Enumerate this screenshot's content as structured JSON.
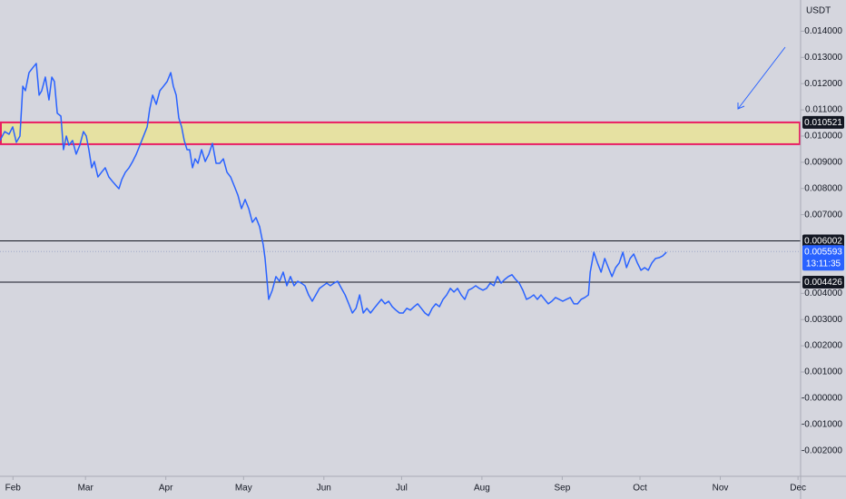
{
  "chart_data": {
    "type": "line",
    "axis_unit": "USDT",
    "color": "#2962ff",
    "x": [
      -5.0,
      -3.2,
      -1.5,
      -0.1,
      1.3,
      2.7,
      3.8,
      4.8,
      6.2,
      7.6,
      9.0,
      10.1,
      11.1,
      12.5,
      13.9,
      15.0,
      16.0,
      17.1,
      18.5,
      19.5,
      20.6,
      21.6,
      23.0,
      24.4,
      25.8,
      27.2,
      28.3,
      29.3,
      30.4,
      31.4,
      32.8,
      34.2,
      35.6,
      37.0,
      38.4,
      39.9,
      40.9,
      42.0,
      43.4,
      44.8,
      46.2,
      47.6,
      49.0,
      50.4,
      51.8,
      52.8,
      53.9,
      55.3,
      56.7,
      58.1,
      59.5,
      60.9,
      61.9,
      63.0,
      64.0,
      65.1,
      66.1,
      67.2,
      68.2,
      69.3,
      70.3,
      71.4,
      72.8,
      74.2,
      75.6,
      77.0,
      78.4,
      79.8,
      81.2,
      82.6,
      84.0,
      85.4,
      86.8,
      88.2,
      89.6,
      91.0,
      92.4,
      93.8,
      95.2,
      96.6,
      97.3,
      98.7,
      100.1,
      101.5,
      102.9,
      104.3,
      105.7,
      107.1,
      108.5,
      109.9,
      111.3,
      112.7,
      114.1,
      115.5,
      116.9,
      118.3,
      119.7,
      121.1,
      122.5,
      123.9,
      125.3,
      126.8,
      128.2,
      129.6,
      131.0,
      132.4,
      133.8,
      135.2,
      136.6,
      138.0,
      139.4,
      140.8,
      142.2,
      143.6,
      145.0,
      146.4,
      147.8,
      149.2,
      150.6,
      152.0,
      153.4,
      154.8,
      156.2,
      157.6,
      159.0,
      160.4,
      161.8,
      163.2,
      164.6,
      166.0,
      167.4,
      168.8,
      170.2,
      171.6,
      173.0,
      174.4,
      175.8,
      177.2,
      178.6,
      180.0,
      181.4,
      182.8,
      184.2,
      185.6,
      187.0,
      188.4,
      189.8,
      191.2,
      192.6,
      194.0,
      195.4,
      196.8,
      198.2,
      199.6,
      201.0,
      202.4,
      203.8,
      205.2,
      206.6,
      208.0,
      209.4,
      210.8,
      212.2,
      213.6,
      215.1,
      216.5,
      217.9,
      219.3,
      220.7,
      222.1,
      222.8,
      224.2,
      225.6,
      227.0,
      228.4,
      229.8,
      231.2,
      232.6,
      234.0,
      235.4,
      236.8,
      238.2,
      239.6,
      241.0,
      242.4,
      243.8,
      245.2,
      246.6,
      248.0,
      249.4,
      250.8,
      252.2
    ],
    "values": [
      0.00983,
      0.01017,
      0.01007,
      0.01035,
      0.00976,
      0.01,
      0.0119,
      0.01173,
      0.01242,
      0.0126,
      0.01277,
      0.01156,
      0.01173,
      0.01225,
      0.01138,
      0.01225,
      0.01208,
      0.01087,
      0.01076,
      0.00948,
      0.01,
      0.00965,
      0.00983,
      0.00931,
      0.00965,
      0.01017,
      0.01,
      0.00948,
      0.00879,
      0.00903,
      0.00844,
      0.00862,
      0.00879,
      0.00844,
      0.00827,
      0.0081,
      0.00799,
      0.00834,
      0.00862,
      0.00879,
      0.00903,
      0.00931,
      0.00965,
      0.01,
      0.01035,
      0.01104,
      0.01156,
      0.01121,
      0.01173,
      0.0119,
      0.01208,
      0.01242,
      0.0119,
      0.01156,
      0.01069,
      0.01035,
      0.00983,
      0.00948,
      0.00948,
      0.00879,
      0.00913,
      0.00896,
      0.00948,
      0.00903,
      0.00931,
      0.00972,
      0.00896,
      0.00896,
      0.00913,
      0.00862,
      0.00844,
      0.0081,
      0.00775,
      0.00723,
      0.00758,
      0.00723,
      0.00671,
      0.00689,
      0.00654,
      0.00585,
      0.00533,
      0.00377,
      0.00412,
      0.00464,
      0.00446,
      0.00481,
      0.00429,
      0.00464,
      0.00429,
      0.00446,
      0.00439,
      0.00429,
      0.00394,
      0.0037,
      0.00394,
      0.00419,
      0.00429,
      0.00439,
      0.00429,
      0.00439,
      0.00446,
      0.00419,
      0.00394,
      0.0036,
      0.00325,
      0.00343,
      0.00394,
      0.00325,
      0.00343,
      0.00325,
      0.00343,
      0.0036,
      0.00377,
      0.0036,
      0.0037,
      0.00349,
      0.00336,
      0.00325,
      0.00325,
      0.00343,
      0.00336,
      0.00349,
      0.0036,
      0.00343,
      0.00325,
      0.00315,
      0.00343,
      0.0036,
      0.00349,
      0.00377,
      0.00394,
      0.00419,
      0.00405,
      0.00419,
      0.00394,
      0.00377,
      0.00412,
      0.00419,
      0.00429,
      0.00419,
      0.00412,
      0.00419,
      0.00439,
      0.00429,
      0.00464,
      0.00439,
      0.00453,
      0.00464,
      0.00471,
      0.00453,
      0.00439,
      0.00412,
      0.00377,
      0.00384,
      0.00394,
      0.00377,
      0.00394,
      0.00377,
      0.0036,
      0.0037,
      0.00384,
      0.00377,
      0.0037,
      0.00377,
      0.00384,
      0.0036,
      0.0036,
      0.00377,
      0.00384,
      0.00394,
      0.00481,
      0.00557,
      0.00516,
      0.00481,
      0.00533,
      0.00498,
      0.00464,
      0.00498,
      0.00516,
      0.00557,
      0.00498,
      0.00533,
      0.0055,
      0.00516,
      0.00488,
      0.00498,
      0.00488,
      0.00516,
      0.00533,
      0.00536,
      0.00543,
      0.00557
    ],
    "xlim": [
      -5,
      304
    ],
    "xticks": [
      {
        "value": 0,
        "label": "Feb"
      },
      {
        "value": 28,
        "label": "Mar"
      },
      {
        "value": 59,
        "label": "Apr"
      },
      {
        "value": 89,
        "label": "May"
      },
      {
        "value": 120,
        "label": "Jun"
      },
      {
        "value": 150,
        "label": "Jul"
      },
      {
        "value": 181,
        "label": "Aug"
      },
      {
        "value": 212,
        "label": "Sep"
      },
      {
        "value": 242,
        "label": "Oct"
      },
      {
        "value": 273,
        "label": "Nov"
      },
      {
        "value": 303,
        "label": "Dec"
      }
    ],
    "ylim": [
      -0.00298,
      0.01519
    ],
    "yticks": [
      {
        "value": 0.014,
        "label": "0.014000"
      },
      {
        "value": 0.013,
        "label": "0.013000"
      },
      {
        "value": 0.012,
        "label": "0.012000"
      },
      {
        "value": 0.011,
        "label": "0.011000"
      },
      {
        "value": 0.01,
        "label": "0.010000"
      },
      {
        "value": 0.009,
        "label": "0.009000"
      },
      {
        "value": 0.008,
        "label": "0.008000"
      },
      {
        "value": 0.007,
        "label": "0.007000"
      },
      {
        "value": 0.004,
        "label": "0.004000"
      },
      {
        "value": 0.003,
        "label": "0.003000"
      },
      {
        "value": 0.002,
        "label": "0.002000"
      },
      {
        "value": 0.001,
        "label": "0.001000"
      },
      {
        "value": 0,
        "label": "-0.000000"
      },
      {
        "value": -0.001,
        "label": "-0.001000"
      },
      {
        "value": -0.002,
        "label": "-0.002000"
      }
    ],
    "zone": {
      "top": 0.010521,
      "bottom": 0.00969,
      "fill": "#e6e1a2",
      "border": "#e91e63"
    },
    "levels": [
      0.006002,
      0.004426
    ],
    "last_price": 0.005593,
    "countdown": "13:11:35"
  }
}
